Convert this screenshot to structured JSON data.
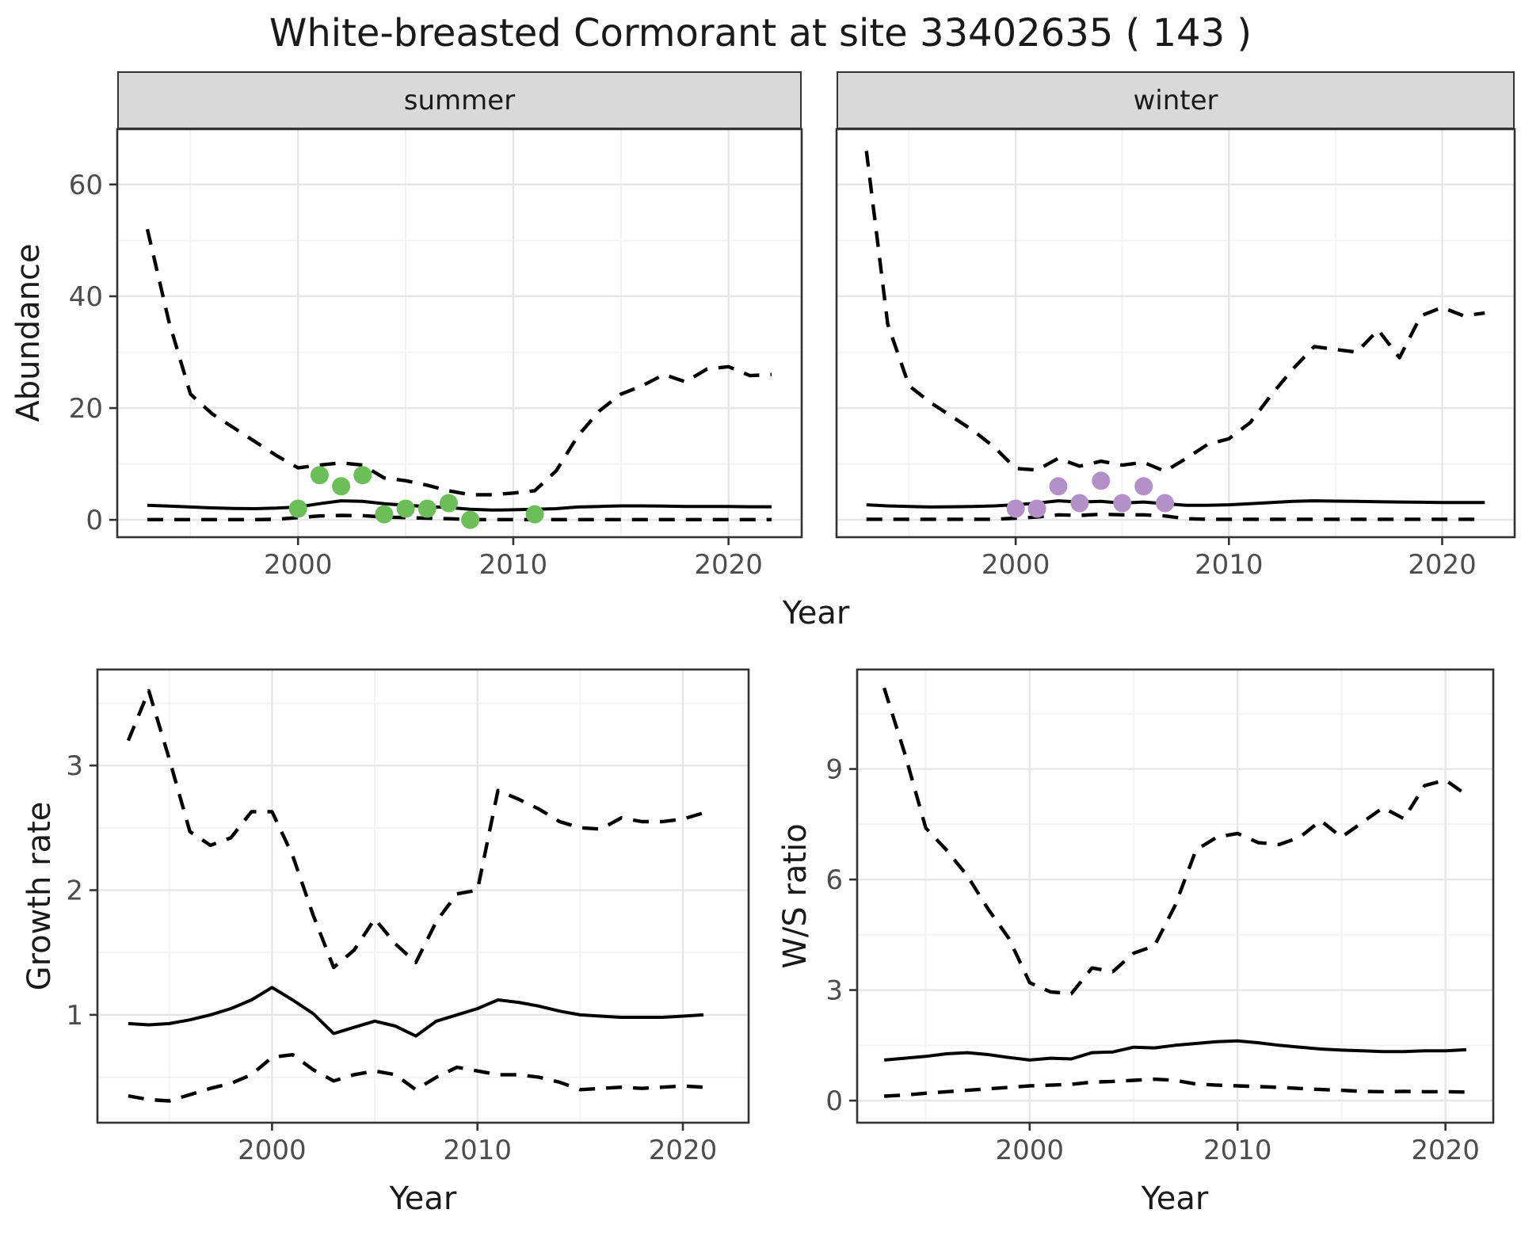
{
  "title": "White-breasted Cormorant at site 33402635 ( 143 )",
  "colors": {
    "summer_point": "#6cbe58",
    "winter_point": "#b490c8",
    "line": "#000000",
    "grid_major": "#e6e6e6",
    "grid_minor": "#f2f2f2",
    "panel_border": "#333333",
    "tick_text": "#4d4d4d",
    "text": "#1a1a1a",
    "strip_bg": "#d9d9d9"
  },
  "axis_titles": {
    "abundance": "Abundance",
    "year_top": "Year",
    "growth": "Growth rate",
    "ws": "W/S ratio",
    "year_growth": "Year",
    "year_ws": "Year"
  },
  "facets": {
    "summer": "summer",
    "winter": "winter"
  },
  "chart_data": [
    {
      "id": "abundance-summer",
      "type": "line",
      "facet": "summer",
      "title": "",
      "xlabel": "Year",
      "ylabel": "Abundance",
      "xlim": [
        1991.6,
        2023.4
      ],
      "ylim": [
        -3.1,
        69.9
      ],
      "grid": true,
      "xticks": {
        "major": [
          2000,
          2010,
          2020
        ],
        "labels": [
          "2000",
          "2010",
          "2020"
        ],
        "minor": [
          1995,
          2005,
          2015
        ]
      },
      "yticks": {
        "major": [
          0,
          20,
          40,
          60
        ],
        "labels": [
          "0",
          "20",
          "40",
          "60"
        ],
        "minor": [
          10,
          30,
          50
        ],
        "show_labels": true
      },
      "x": [
        1993,
        1994,
        1995,
        1996,
        1997,
        1998,
        1999,
        2000,
        2001,
        2002,
        2003,
        2004,
        2005,
        2006,
        2007,
        2008,
        2009,
        2010,
        2011,
        2012,
        2013,
        2014,
        2015,
        2016,
        2017,
        2018,
        2019,
        2020,
        2021,
        2022
      ],
      "series": [
        {
          "name": "upper-95ci",
          "style": "dashed",
          "values": [
            52,
            35.5,
            22.5,
            19,
            16.5,
            14,
            11.5,
            9.3,
            9.8,
            10.2,
            9.8,
            7.5,
            7.0,
            6.2,
            5.2,
            4.5,
            4.5,
            4.8,
            5.2,
            8.8,
            15,
            19.5,
            22.5,
            24,
            26,
            24.7,
            27,
            27.4,
            25.8,
            26
          ]
        },
        {
          "name": "median",
          "style": "solid",
          "values": [
            2.6,
            2.45,
            2.3,
            2.15,
            2.05,
            2.0,
            2.1,
            2.3,
            2.9,
            3.4,
            3.3,
            2.9,
            2.6,
            2.4,
            2.2,
            1.9,
            1.75,
            1.8,
            1.9,
            2.0,
            2.3,
            2.4,
            2.5,
            2.5,
            2.45,
            2.4,
            2.4,
            2.4,
            2.35,
            2.35
          ]
        },
        {
          "name": "lower-95ci",
          "style": "dashed",
          "values": [
            0.05,
            0.05,
            0.05,
            0.05,
            0.05,
            0.05,
            0.1,
            0.4,
            0.7,
            0.8,
            0.75,
            0.5,
            0.4,
            0.3,
            0.2,
            0.05,
            0.05,
            0.05,
            0.05,
            0.05,
            0.05,
            0.05,
            0.05,
            0.05,
            0.05,
            0.05,
            0.05,
            0.05,
            0.05,
            0.05
          ]
        }
      ],
      "points": {
        "name": "observed-count",
        "color_key": "summer_point",
        "x": [
          2000,
          2001,
          2002,
          2003,
          2004,
          2005,
          2006,
          2007,
          2008,
          2011
        ],
        "y": [
          2,
          8,
          6,
          8,
          1,
          2,
          2,
          3,
          0,
          1
        ]
      }
    },
    {
      "id": "abundance-winter",
      "type": "line",
      "facet": "winter",
      "title": "",
      "xlabel": "Year",
      "ylabel": "Abundance",
      "xlim": [
        1991.6,
        2023.4
      ],
      "ylim": [
        -3.1,
        69.9
      ],
      "grid": true,
      "xticks": {
        "major": [
          2000,
          2010,
          2020
        ],
        "labels": [
          "2000",
          "2010",
          "2020"
        ],
        "minor": [
          1995,
          2005,
          2015
        ]
      },
      "yticks": {
        "major": [
          0,
          20,
          40,
          60
        ],
        "labels": [
          "0",
          "20",
          "40",
          "60"
        ],
        "minor": [
          10,
          30,
          50
        ],
        "show_labels": false
      },
      "x": [
        1993,
        1994,
        1995,
        1996,
        1997,
        1998,
        1999,
        2000,
        2001,
        2002,
        2003,
        2004,
        2005,
        2006,
        2007,
        2008,
        2009,
        2010,
        2011,
        2012,
        2013,
        2014,
        2015,
        2016,
        2017,
        2018,
        2019,
        2020,
        2021,
        2022
      ],
      "series": [
        {
          "name": "upper-95ci",
          "style": "dashed",
          "values": [
            66,
            35,
            24,
            21,
            18.5,
            16,
            13,
            9.2,
            8.9,
            11,
            9.6,
            10.5,
            9.8,
            10.3,
            8.7,
            11,
            13.5,
            14.5,
            17.4,
            22.4,
            27,
            31,
            30.5,
            30,
            34,
            29,
            36.5,
            38,
            36.5,
            37
          ]
        },
        {
          "name": "median",
          "style": "solid",
          "values": [
            2.7,
            2.5,
            2.4,
            2.3,
            2.35,
            2.4,
            2.5,
            2.7,
            3.0,
            3.4,
            3.2,
            3.3,
            3.0,
            3.2,
            2.9,
            2.6,
            2.6,
            2.7,
            2.9,
            3.1,
            3.3,
            3.4,
            3.35,
            3.3,
            3.25,
            3.2,
            3.15,
            3.1,
            3.1,
            3.1
          ]
        },
        {
          "name": "lower-95ci",
          "style": "dashed",
          "values": [
            0.1,
            0.1,
            0.1,
            0.1,
            0.1,
            0.1,
            0.1,
            0.3,
            0.5,
            0.9,
            0.8,
            1.0,
            0.9,
            0.9,
            0.7,
            0.2,
            0.1,
            0.1,
            0.1,
            0.1,
            0.1,
            0.1,
            0.1,
            0.1,
            0.1,
            0.1,
            0.1,
            0.1,
            0.1,
            0.1
          ]
        }
      ],
      "points": {
        "name": "observed-count",
        "color_key": "winter_point",
        "x": [
          2000,
          2001,
          2002,
          2003,
          2004,
          2005,
          2006,
          2007
        ],
        "y": [
          2,
          2,
          6,
          3,
          7,
          3,
          6,
          3
        ]
      }
    },
    {
      "id": "growth-rate",
      "type": "line",
      "facet": "",
      "title": "",
      "xlabel": "Year",
      "ylabel": "Growth rate",
      "xlim": [
        1991.5,
        2023.2
      ],
      "ylim": [
        0.135,
        3.77
      ],
      "grid": true,
      "xticks": {
        "major": [
          2000,
          2010,
          2020
        ],
        "labels": [
          "2000",
          "2010",
          "2020"
        ],
        "minor": [
          1995,
          2005,
          2015
        ]
      },
      "yticks": {
        "major": [
          1,
          2,
          3
        ],
        "labels": [
          "1",
          "2",
          "3"
        ],
        "minor": [
          0.5,
          1.5,
          2.5,
          3.5
        ],
        "show_labels": true
      },
      "x": [
        1993,
        1994,
        1995,
        1996,
        1997,
        1998,
        1999,
        2000,
        2001,
        2002,
        2003,
        2004,
        2005,
        2006,
        2007,
        2008,
        2009,
        2010,
        2011,
        2012,
        2013,
        2014,
        2015,
        2016,
        2017,
        2018,
        2019,
        2020,
        2021
      ],
      "series": [
        {
          "name": "upper-95ci",
          "style": "dashed",
          "values": [
            3.2,
            3.6,
            3.05,
            2.47,
            2.36,
            2.42,
            2.63,
            2.63,
            2.28,
            1.8,
            1.38,
            1.52,
            1.77,
            1.57,
            1.42,
            1.75,
            1.97,
            2.0,
            2.8,
            2.73,
            2.65,
            2.55,
            2.5,
            2.49,
            2.58,
            2.55,
            2.55,
            2.57,
            2.62
          ]
        },
        {
          "name": "median",
          "style": "solid",
          "values": [
            0.93,
            0.92,
            0.93,
            0.96,
            1.0,
            1.05,
            1.12,
            1.22,
            1.12,
            1.01,
            0.85,
            0.9,
            0.95,
            0.91,
            0.83,
            0.95,
            1.0,
            1.05,
            1.12,
            1.1,
            1.07,
            1.03,
            1.0,
            0.99,
            0.98,
            0.98,
            0.98,
            0.99,
            1.0
          ]
        },
        {
          "name": "lower-95ci",
          "style": "dashed",
          "values": [
            0.35,
            0.32,
            0.31,
            0.36,
            0.41,
            0.45,
            0.52,
            0.66,
            0.68,
            0.56,
            0.47,
            0.52,
            0.55,
            0.52,
            0.4,
            0.5,
            0.58,
            0.55,
            0.52,
            0.52,
            0.5,
            0.46,
            0.4,
            0.41,
            0.42,
            0.41,
            0.42,
            0.43,
            0.42
          ]
        }
      ],
      "points": null
    },
    {
      "id": "ws-ratio",
      "type": "line",
      "facet": "",
      "title": "",
      "xlabel": "Year",
      "ylabel": "W/S ratio",
      "xlim": [
        1991.7,
        2022.3
      ],
      "ylim": [
        -0.6,
        11.7
      ],
      "grid": true,
      "xticks": {
        "major": [
          2000,
          2010,
          2020
        ],
        "labels": [
          "2000",
          "2010",
          "2020"
        ],
        "minor": [
          1995,
          2005,
          2015
        ]
      },
      "yticks": {
        "major": [
          0,
          3,
          6,
          9
        ],
        "labels": [
          "0",
          "3",
          "6",
          "9"
        ],
        "minor": [
          1.5,
          4.5,
          7.5,
          10.5
        ],
        "show_labels": true
      },
      "x": [
        1993,
        1994,
        1995,
        1996,
        1997,
        1998,
        1999,
        2000,
        2001,
        2002,
        2003,
        2004,
        2005,
        2006,
        2007,
        2008,
        2009,
        2010,
        2011,
        2012,
        2013,
        2014,
        2015,
        2016,
        2017,
        2018,
        2019,
        2020,
        2021
      ],
      "series": [
        {
          "name": "upper-95ci",
          "style": "dashed",
          "values": [
            11.2,
            9.4,
            7.4,
            6.8,
            6.1,
            5.2,
            4.4,
            3.2,
            2.95,
            2.9,
            3.6,
            3.5,
            4.0,
            4.2,
            5.3,
            6.8,
            7.15,
            7.25,
            7.0,
            6.95,
            7.15,
            7.6,
            7.15,
            7.55,
            7.95,
            7.65,
            8.55,
            8.7,
            8.3
          ]
        },
        {
          "name": "median",
          "style": "solid",
          "values": [
            1.1,
            1.15,
            1.2,
            1.27,
            1.3,
            1.25,
            1.17,
            1.1,
            1.15,
            1.13,
            1.3,
            1.32,
            1.45,
            1.43,
            1.5,
            1.55,
            1.6,
            1.62,
            1.57,
            1.5,
            1.45,
            1.4,
            1.37,
            1.35,
            1.33,
            1.33,
            1.35,
            1.35,
            1.38
          ]
        },
        {
          "name": "lower-95ci",
          "style": "dashed",
          "values": [
            0.12,
            0.15,
            0.2,
            0.24,
            0.28,
            0.32,
            0.36,
            0.4,
            0.42,
            0.44,
            0.5,
            0.52,
            0.55,
            0.58,
            0.55,
            0.45,
            0.42,
            0.4,
            0.38,
            0.36,
            0.33,
            0.3,
            0.28,
            0.25,
            0.24,
            0.25,
            0.24,
            0.24,
            0.23
          ]
        }
      ],
      "points": null
    }
  ]
}
